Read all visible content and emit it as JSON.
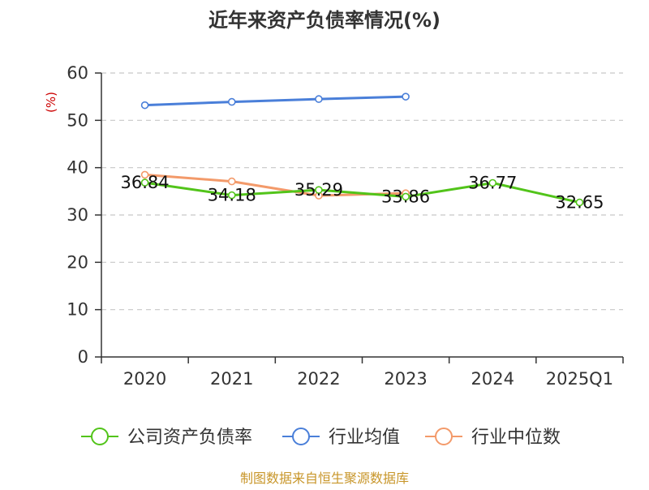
{
  "chart_data": {
    "type": "line",
    "title": "近年来资产负债率情况(%)",
    "ylabel": "(%)",
    "xlabel": "",
    "categories": [
      "2020",
      "2021",
      "2022",
      "2023",
      "2024",
      "2025Q1"
    ],
    "ylim": [
      0,
      60
    ],
    "yticks": [
      0,
      10,
      20,
      30,
      40,
      50,
      60
    ],
    "grid": true,
    "legend_position": "bottom",
    "series": [
      {
        "name": "公司资产负债率",
        "color": "#52c41a",
        "values": [
          36.84,
          34.18,
          35.29,
          33.86,
          36.77,
          32.65
        ],
        "labels": [
          "36.84",
          "34.18",
          "35.29",
          "33.86",
          "36.77",
          "32.65"
        ]
      },
      {
        "name": "行业均值",
        "color": "#4a7fd9",
        "values": [
          53.2,
          53.9,
          54.5,
          55.0,
          null,
          null
        ]
      },
      {
        "name": "行业中位数",
        "color": "#f39a6a",
        "values": [
          38.5,
          37.1,
          34.1,
          34.6,
          null,
          null
        ]
      }
    ],
    "source": "制图数据来自恒生聚源数据库"
  },
  "colors": {
    "axis": "#333333",
    "grid": "#c8c8c8",
    "ylabel": "#cc0000",
    "source": "#c8962a"
  }
}
